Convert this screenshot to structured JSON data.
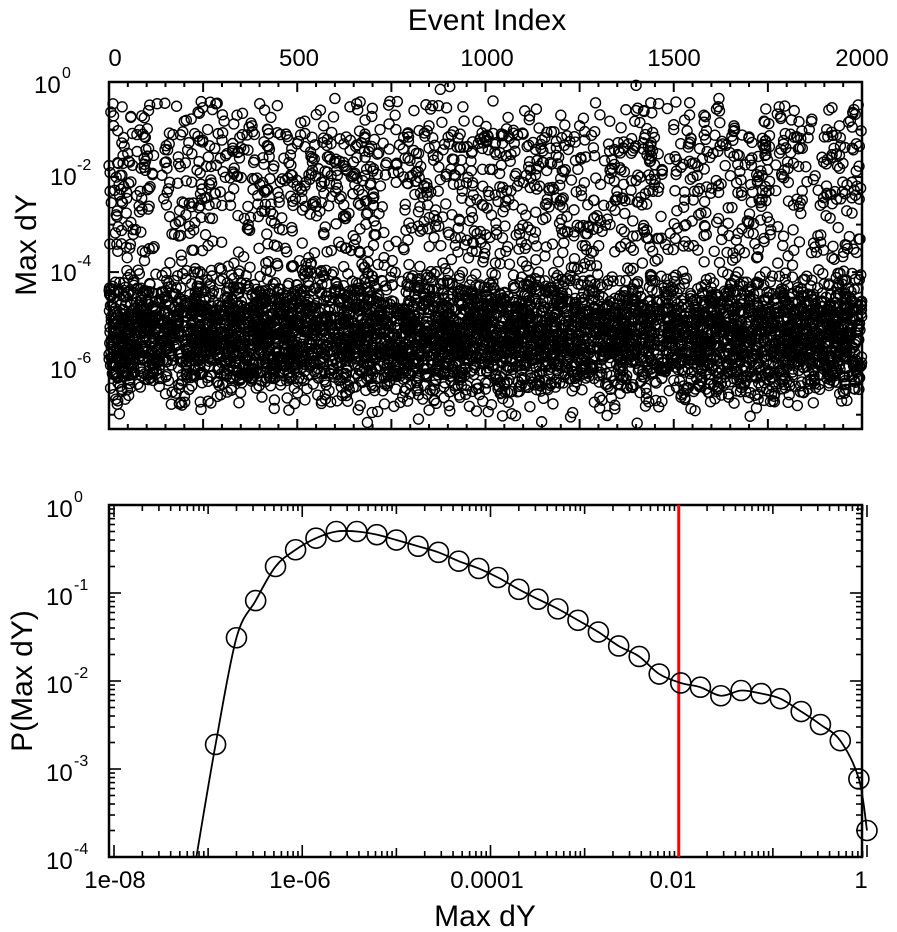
{
  "chart_data": [
    {
      "type": "scatter",
      "title": "",
      "xlabel": "Event Index",
      "ylabel": "Max dY",
      "xlim": [
        0,
        2000
      ],
      "ylim": [
        5e-08,
        1
      ],
      "yscale": "log",
      "x_axis_position": "top",
      "x_tick_labels": [
        "0",
        "500",
        "1000",
        "1500",
        "2000"
      ],
      "y_tick_labels": [
        {
          "base": "10",
          "exp": "0"
        },
        {
          "base": "10",
          "exp": "-2"
        },
        {
          "base": "10",
          "exp": "-4"
        },
        {
          "base": "10",
          "exp": "-6"
        }
      ],
      "marker": "open-circle",
      "grid": false,
      "legend": false,
      "distribution": {
        "x_range": [
          0,
          2000
        ],
        "y_min": 5e-08,
        "y_max": 1,
        "dense_band_log10": [
          -7.3,
          -3.3
        ],
        "high_outliers_present": true
      },
      "series": [
        {
          "values_note_removed": true,
          "points": [
            [
              12,
              0.12
            ],
            [
              35,
              0.3
            ],
            [
              58,
              0.18
            ],
            [
              90,
              0.08
            ],
            [
              105,
              0.25
            ],
            [
              128,
              0.35
            ],
            [
              160,
              0.05
            ],
            [
              200,
              0.15
            ],
            [
              240,
              0.22
            ],
            [
              262,
              0.1
            ],
            [
              300,
              0.06
            ],
            [
              340,
              0.2
            ],
            [
              380,
              0.12
            ],
            [
              430,
              0.18
            ],
            [
              470,
              0.08
            ],
            [
              500,
              0.05
            ],
            [
              520,
              0.15
            ],
            [
              570,
              0.12
            ],
            [
              600,
              0.45
            ],
            [
              640,
              0.3
            ],
            [
              680,
              0.08
            ],
            [
              720,
              0.1
            ],
            [
              760,
              0.2
            ],
            [
              810,
              0.25
            ],
            [
              850,
              0.12
            ],
            [
              880,
              0.7
            ],
            [
              905,
              0.8
            ],
            [
              940,
              0.3
            ],
            [
              980,
              0.15
            ],
            [
              1020,
              0.4
            ],
            [
              1060,
              0.18
            ],
            [
              1100,
              0.08
            ],
            [
              1150,
              0.06
            ],
            [
              1200,
              0.2
            ],
            [
              1250,
              0.12
            ],
            [
              1290,
              0.09
            ],
            [
              1330,
              0.15
            ],
            [
              1380,
              0.05
            ],
            [
              1400,
              0.85
            ],
            [
              1420,
              0.25
            ],
            [
              1460,
              0.35
            ],
            [
              1500,
              0.1
            ],
            [
              1540,
              0.05
            ],
            [
              1580,
              0.2
            ],
            [
              1620,
              0.45
            ],
            [
              1660,
              0.12
            ],
            [
              1700,
              0.07
            ],
            [
              1740,
              0.15
            ],
            [
              1780,
              0.3
            ],
            [
              1820,
              0.25
            ],
            [
              1860,
              0.1
            ],
            [
              1900,
              0.07
            ],
            [
              1940,
              0.12
            ],
            [
              1985,
              0.05
            ]
          ]
        }
      ]
    },
    {
      "type": "line",
      "title": "",
      "xlabel": "Max dY",
      "ylabel": "P(Max dY)",
      "xlim": [
        1e-08,
        1
      ],
      "ylim": [
        0.0001,
        1
      ],
      "xscale": "log",
      "yscale": "log",
      "x_tick_labels": [
        "1e-08",
        "1e-06",
        "0.0001",
        "0.01",
        "1"
      ],
      "y_tick_labels": [
        {
          "base": "10",
          "exp": "0"
        },
        {
          "base": "10",
          "exp": "-1"
        },
        {
          "base": "10",
          "exp": "-2"
        },
        {
          "base": "10",
          "exp": "-3"
        },
        {
          "base": "10",
          "exp": "-4"
        }
      ],
      "marker": "open-circle",
      "grid": false,
      "legend": false,
      "reference_line": {
        "x": 0.01,
        "color": "#ff0000"
      },
      "series": [
        {
          "x": [
            7.5e-08,
            1.2e-07,
            2e-07,
            3.2e-07,
            5.2e-07,
            8.5e-07,
            1.4e-06,
            2.3e-06,
            3.8e-06,
            6.2e-06,
            1e-05,
            1.7e-05,
            2.8e-05,
            4.6e-05,
            7.5e-05,
            0.00012,
            0.0002,
            0.00032,
            0.00052,
            0.00085,
            0.0014,
            0.0023,
            0.0038,
            0.0062,
            0.0105,
            0.017,
            0.028,
            0.046,
            0.075,
            0.12,
            0.2,
            0.32,
            0.52,
            0.82,
            1.0
          ],
          "y": [
            0.0001,
            0.0019,
            0.031,
            0.082,
            0.2,
            0.31,
            0.42,
            0.5,
            0.5,
            0.46,
            0.4,
            0.34,
            0.29,
            0.23,
            0.19,
            0.15,
            0.11,
            0.085,
            0.066,
            0.049,
            0.036,
            0.025,
            0.019,
            0.012,
            0.0095,
            0.0085,
            0.0068,
            0.0078,
            0.0072,
            0.0063,
            0.0045,
            0.0032,
            0.0021,
            0.00077,
            0.0002
          ],
          "marker_from_index": 1
        }
      ]
    }
  ]
}
